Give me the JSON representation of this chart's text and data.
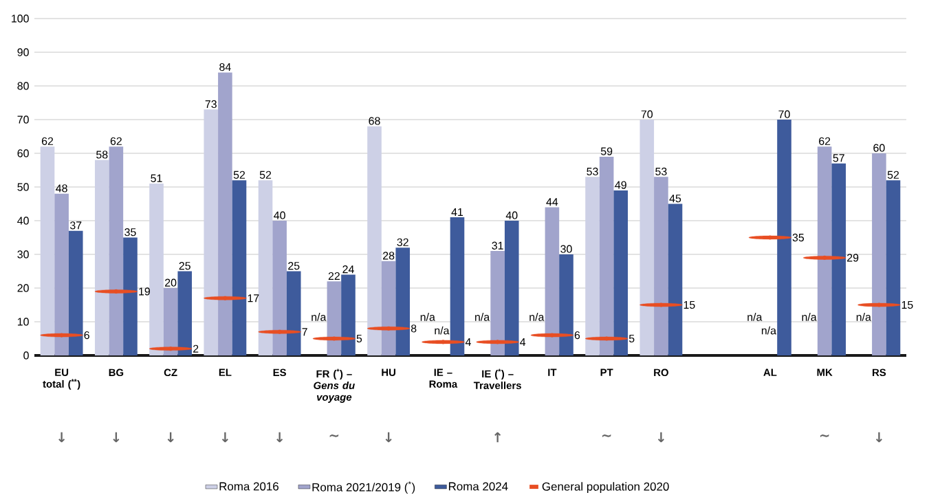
{
  "chart_data": {
    "type": "bar",
    "categories": [
      "EU total ($^{**}$)",
      "BG",
      "CZ",
      "EL",
      "ES",
      "FR ($^{*}$) – *Gens du voyage*",
      "HU",
      "IE – Roma",
      "IE ($^{*}$) – Travellers",
      "IT",
      "PT",
      "RO",
      null,
      "AL",
      "MK",
      "RS"
    ],
    "series": [
      {
        "name": "Roma 2016",
        "color": "#cdd0e6",
        "values": [
          62,
          58,
          51,
          73,
          52,
          null,
          68,
          null,
          null,
          null,
          53,
          70,
          null,
          null,
          null,
          null
        ],
        "value_labels": [
          "62",
          "58",
          "51",
          "73",
          "52",
          "n/a",
          "68",
          "n/a",
          "n/a",
          "n/a",
          "53",
          "70",
          null,
          "n/a",
          "n/a",
          "n/a"
        ]
      },
      {
        "name": "Roma 2021/2019 ($^{*}$)",
        "color": "#a1a4cc",
        "values": [
          48,
          62,
          20,
          84,
          40,
          22,
          28,
          null,
          31,
          44,
          59,
          53,
          null,
          null,
          62,
          60
        ],
        "value_labels": [
          "48",
          "62",
          "20",
          "84",
          "40",
          "22",
          "28",
          "n/a",
          "31",
          "44",
          "59",
          "53",
          null,
          "n/a",
          "62",
          "60"
        ]
      },
      {
        "name": "Roma 2024",
        "color": "#3e5b9c",
        "values": [
          37,
          35,
          25,
          52,
          25,
          24,
          32,
          41,
          40,
          30,
          49,
          45,
          null,
          70,
          57,
          52
        ],
        "value_labels": [
          "37",
          "35",
          "25",
          "52",
          "25",
          "24",
          "32",
          "41",
          "40",
          "30",
          "49",
          "45",
          null,
          "70",
          "57",
          "52"
        ]
      },
      {
        "name": "General population 2020",
        "type": "scatter",
        "color": "#e84e23",
        "values": [
          6,
          19,
          2,
          17,
          7,
          5,
          8,
          4,
          4,
          6,
          5,
          15,
          null,
          35,
          29,
          15
        ],
        "value_labels": [
          "6",
          "19",
          "2",
          "17",
          "7",
          "5",
          "8",
          "4",
          "4",
          "6",
          "5",
          "15",
          null,
          "35",
          "29",
          "15"
        ]
      }
    ],
    "ylim": [
      0,
      100
    ],
    "yticks": [
      0,
      10,
      20,
      30,
      40,
      50,
      60,
      70,
      80,
      90,
      100
    ],
    "grid": "y",
    "legend": "bottom",
    "annotations": [
      "↓",
      "↓",
      "↓",
      "↓",
      "↓",
      "~",
      "↓",
      null,
      "↑",
      null,
      "~",
      "↓",
      null,
      null,
      "~",
      "↓"
    ]
  }
}
